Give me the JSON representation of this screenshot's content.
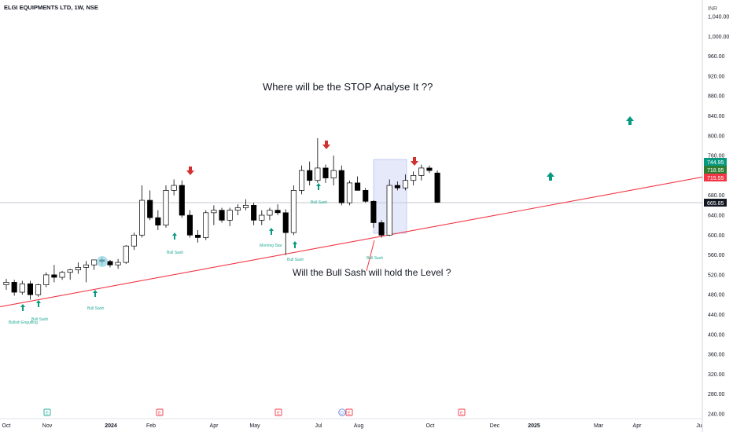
{
  "header": {
    "symbol_title": "ELGI EQUIPMENTS LTD, 1W, NSE"
  },
  "price_axis": {
    "currency": "INR",
    "ticks": [
      1040,
      1000,
      960,
      920,
      880,
      840,
      800,
      760,
      720,
      680,
      640,
      600,
      560,
      520,
      480,
      440,
      400,
      360,
      320,
      280,
      240
    ],
    "tick_labels": [
      "1,040.00",
      "1,000.00",
      "960.00",
      "920.00",
      "880.00",
      "840.00",
      "800.00",
      "760.00",
      "720.00",
      "680.00",
      "640.00",
      "600.00",
      "560.00",
      "520.00",
      "480.00",
      "440.00",
      "400.00",
      "360.00",
      "320.00",
      "280.00",
      "240.00"
    ]
  },
  "price_tags": [
    {
      "label": "744.95",
      "value": 744.95,
      "color": "#089981"
    },
    {
      "label": "718.95",
      "value": 718.95,
      "color": "#2e7d32"
    },
    {
      "label": "715.55",
      "value": 715.55,
      "color": "#f23645"
    },
    {
      "label": "665.85",
      "value": 665.85,
      "color": "#131722"
    }
  ],
  "time_axis": {
    "labels": [
      "Oct",
      "Nov",
      "2024",
      "Feb",
      "Apr",
      "May",
      "Jul",
      "Aug",
      "Oct",
      "Dec",
      "2025",
      "Mar",
      "Apr",
      "Ju"
    ]
  },
  "annotations": {
    "headline": "Where will be the STOP Analyse It ??",
    "question": "Will the Bull Sash will hold the Level ?"
  },
  "pattern_labels": [
    "Bullish Engulfing",
    "Bull Sash",
    "Bull Sash",
    "Bull Sash",
    "Morning Star",
    "Bull Sash",
    "Bull Sash",
    "Bull Sash"
  ],
  "event_markers": [
    "E",
    "E",
    "E",
    "D",
    "E",
    "E"
  ],
  "colors": {
    "bull_body": "#ffffff",
    "bear_body": "#000000",
    "wick": "#000000",
    "trendline": "#f23645",
    "up_arrow": "#089981",
    "down_arrow": "#d32f2f",
    "label_green": "#22ab94",
    "highlight_box": "#c5cff5"
  },
  "chart_data": {
    "type": "candlestick",
    "title": "ELGI EQUIPMENTS LTD, 1W, NSE",
    "ylim": [
      230,
      1060
    ],
    "candles": [
      {
        "o": 500,
        "h": 512,
        "l": 490,
        "c": 505
      },
      {
        "o": 505,
        "h": 510,
        "l": 478,
        "c": 485
      },
      {
        "o": 485,
        "h": 508,
        "l": 480,
        "c": 502
      },
      {
        "o": 502,
        "h": 508,
        "l": 470,
        "c": 480
      },
      {
        "o": 480,
        "h": 502,
        "l": 476,
        "c": 500
      },
      {
        "o": 500,
        "h": 525,
        "l": 495,
        "c": 520
      },
      {
        "o": 520,
        "h": 540,
        "l": 505,
        "c": 515
      },
      {
        "o": 515,
        "h": 528,
        "l": 510,
        "c": 525
      },
      {
        "o": 525,
        "h": 532,
        "l": 510,
        "c": 530
      },
      {
        "o": 530,
        "h": 545,
        "l": 522,
        "c": 535
      },
      {
        "o": 535,
        "h": 548,
        "l": 505,
        "c": 540
      },
      {
        "o": 540,
        "h": 550,
        "l": 530,
        "c": 550
      },
      {
        "o": 550,
        "h": 555,
        "l": 540,
        "c": 547
      },
      {
        "o": 547,
        "h": 550,
        "l": 535,
        "c": 540
      },
      {
        "o": 540,
        "h": 552,
        "l": 532,
        "c": 545
      },
      {
        "o": 545,
        "h": 580,
        "l": 542,
        "c": 578
      },
      {
        "o": 578,
        "h": 605,
        "l": 570,
        "c": 600
      },
      {
        "o": 600,
        "h": 700,
        "l": 595,
        "c": 670
      },
      {
        "o": 670,
        "h": 690,
        "l": 630,
        "c": 635
      },
      {
        "o": 635,
        "h": 650,
        "l": 610,
        "c": 620
      },
      {
        "o": 620,
        "h": 700,
        "l": 615,
        "c": 690
      },
      {
        "o": 690,
        "h": 712,
        "l": 680,
        "c": 700
      },
      {
        "o": 700,
        "h": 710,
        "l": 635,
        "c": 640
      },
      {
        "o": 640,
        "h": 650,
        "l": 595,
        "c": 600
      },
      {
        "o": 600,
        "h": 610,
        "l": 585,
        "c": 595
      },
      {
        "o": 595,
        "h": 650,
        "l": 590,
        "c": 645
      },
      {
        "o": 645,
        "h": 660,
        "l": 620,
        "c": 650
      },
      {
        "o": 650,
        "h": 655,
        "l": 625,
        "c": 630
      },
      {
        "o": 630,
        "h": 655,
        "l": 618,
        "c": 650
      },
      {
        "o": 650,
        "h": 662,
        "l": 640,
        "c": 655
      },
      {
        "o": 655,
        "h": 672,
        "l": 650,
        "c": 660
      },
      {
        "o": 660,
        "h": 665,
        "l": 620,
        "c": 630
      },
      {
        "o": 630,
        "h": 650,
        "l": 620,
        "c": 640
      },
      {
        "o": 640,
        "h": 655,
        "l": 630,
        "c": 650
      },
      {
        "o": 650,
        "h": 662,
        "l": 640,
        "c": 645
      },
      {
        "o": 645,
        "h": 652,
        "l": 560,
        "c": 605
      },
      {
        "o": 605,
        "h": 700,
        "l": 600,
        "c": 690
      },
      {
        "o": 690,
        "h": 740,
        "l": 682,
        "c": 730
      },
      {
        "o": 730,
        "h": 748,
        "l": 700,
        "c": 710
      },
      {
        "o": 710,
        "h": 795,
        "l": 705,
        "c": 735
      },
      {
        "o": 735,
        "h": 742,
        "l": 705,
        "c": 715
      },
      {
        "o": 715,
        "h": 760,
        "l": 700,
        "c": 730
      },
      {
        "o": 730,
        "h": 740,
        "l": 660,
        "c": 665
      },
      {
        "o": 665,
        "h": 710,
        "l": 660,
        "c": 705
      },
      {
        "o": 705,
        "h": 718,
        "l": 690,
        "c": 690
      },
      {
        "o": 690,
        "h": 695,
        "l": 665,
        "c": 668
      },
      {
        "o": 668,
        "h": 670,
        "l": 615,
        "c": 625
      },
      {
        "o": 625,
        "h": 630,
        "l": 595,
        "c": 600
      },
      {
        "o": 600,
        "h": 712,
        "l": 598,
        "c": 700
      },
      {
        "o": 700,
        "h": 708,
        "l": 690,
        "c": 695
      },
      {
        "o": 695,
        "h": 722,
        "l": 690,
        "c": 710
      },
      {
        "o": 710,
        "h": 728,
        "l": 700,
        "c": 720
      },
      {
        "o": 720,
        "h": 742,
        "l": 710,
        "c": 735
      },
      {
        "o": 735,
        "h": 740,
        "l": 725,
        "c": 730
      },
      {
        "o": 725,
        "h": 730,
        "l": 665,
        "c": 666
      }
    ],
    "trendline": {
      "start": {
        "index": 0,
        "price": 462
      },
      "end": {
        "index": 110,
        "price": 720
      }
    }
  }
}
